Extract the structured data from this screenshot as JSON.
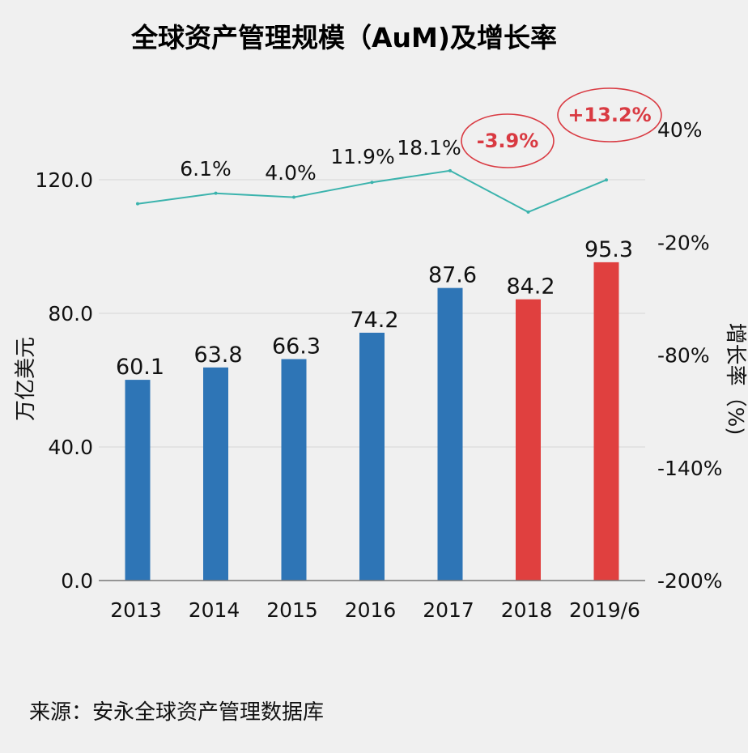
{
  "chart_data": {
    "type": "bar",
    "title": "全球资产管理规模（AuM)及增长率",
    "categories": [
      "2013",
      "2014",
      "2015",
      "2016",
      "2017",
      "2018",
      "2019/6"
    ],
    "series": [
      {
        "name": "AuM",
        "type": "bar",
        "axis": "left",
        "values": [
          60.1,
          63.8,
          66.3,
          74.2,
          87.6,
          84.2,
          95.3
        ],
        "labels": [
          "60.1",
          "63.8",
          "66.3",
          "74.2",
          "87.6",
          "84.2",
          "95.3"
        ],
        "colors": [
          "#2e75b6",
          "#2e75b6",
          "#2e75b6",
          "#2e75b6",
          "#2e75b6",
          "#e0403f",
          "#e0403f"
        ]
      },
      {
        "name": "增长率",
        "type": "line",
        "axis": "right",
        "color": "#3bb3ad",
        "values": [
          0.5,
          6.1,
          4.0,
          11.9,
          18.1,
          -3.9,
          13.2
        ],
        "labels": [
          "",
          "6.1%",
          "4.0%",
          "11.9%",
          "18.1%",
          "-3.9%",
          "+13.2%"
        ],
        "highlighted": [
          false,
          false,
          false,
          false,
          false,
          true,
          true
        ]
      }
    ],
    "ylabel": "万亿美元",
    "ylim": [
      0,
      130
    ],
    "yticks": [
      "0.0",
      "40.0",
      "80.0",
      "120.0"
    ],
    "y2label": "增长率（%)",
    "y2lim": [
      -200,
      60
    ],
    "y2ticks": [
      "-200%",
      "-140%",
      "-80%",
      "-20%",
      "40%"
    ],
    "grid": true,
    "highlight_color": "#d93a42"
  },
  "source": "来源：安永全球资产管理数据库"
}
